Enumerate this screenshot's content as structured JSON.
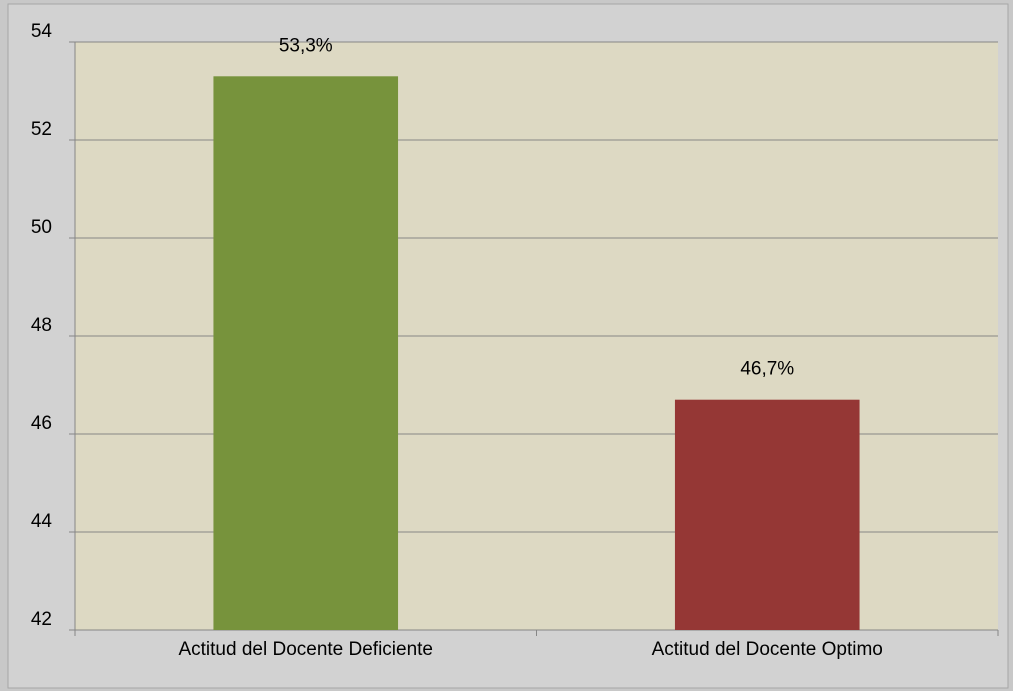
{
  "chart_data": {
    "type": "bar",
    "categories": [
      "Actitud del Docente Deficiente",
      "Actitud del Docente Optimo"
    ],
    "values": [
      53.3,
      46.7
    ],
    "value_labels": [
      "53,3%",
      "46,7%"
    ],
    "colors": [
      "#77933c",
      "#953735"
    ],
    "ylim": [
      42,
      54
    ],
    "yticks": [
      42,
      44,
      46,
      48,
      50,
      52,
      54
    ],
    "grid": true
  }
}
